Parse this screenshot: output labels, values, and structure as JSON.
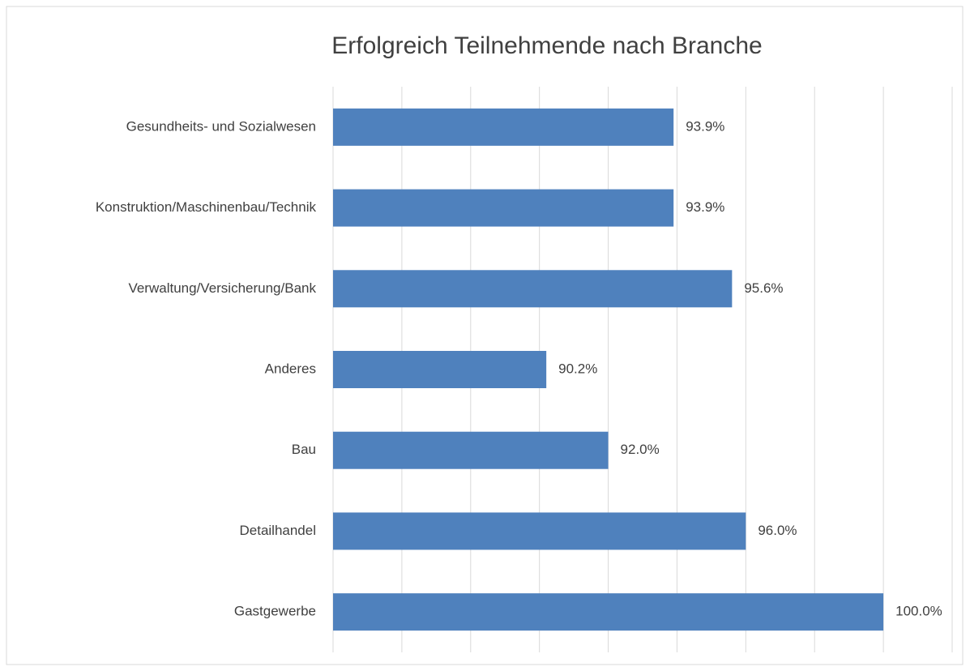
{
  "chart_data": {
    "type": "barh",
    "title": "Erfolgreich Teilnehmende nach Branche",
    "categories": [
      "Gesundheits- und Sozialwesen",
      "Konstruktion/Maschinenbau/Technik",
      "Verwaltung/Versicherung/Bank",
      "Anderes",
      "Bau",
      "Detailhandel",
      "Gastgewerbe"
    ],
    "values": [
      93.9,
      93.9,
      95.6,
      90.2,
      92.0,
      96.0,
      100.0
    ],
    "value_labels": [
      "93.9%",
      "93.9%",
      "95.6%",
      "90.2%",
      "92.0%",
      "96.0%",
      "100.0%"
    ],
    "color": "#4f81bd",
    "xlim": [
      84,
      102
    ],
    "xticks": [
      84,
      86,
      88,
      90,
      92,
      94,
      96,
      98,
      100,
      102
    ],
    "grid": true
  }
}
